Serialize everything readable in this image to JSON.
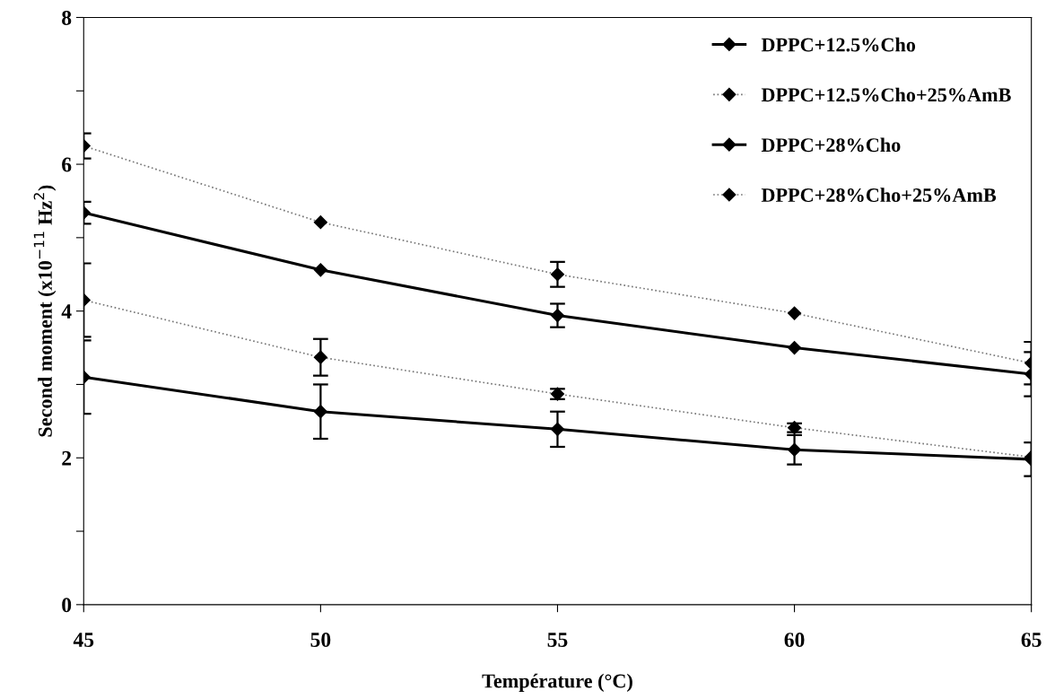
{
  "chart_data": {
    "type": "line",
    "xlabel": "Température (°C)",
    "ylabel": "Second moment (x10$^{−11}$ Hz$^{2}$)",
    "x": [
      45,
      50,
      55,
      60,
      65
    ],
    "series": [
      {
        "name": "DPPC+12.5%Cho",
        "color": "#000000",
        "line_style": "solid",
        "values": [
          3.1,
          2.63,
          2.39,
          2.11,
          1.98
        ],
        "errors": [
          0.5,
          0.37,
          0.24,
          0.2,
          0.23
        ]
      },
      {
        "name": "DPPC+12.5%Cho+25%AmB",
        "color": "#000000",
        "line_style": "dotted",
        "values": [
          4.15,
          3.37,
          2.87,
          2.41,
          2.01
        ],
        "errors": [
          0.5,
          0.25,
          0.07,
          0.06,
          null
        ]
      },
      {
        "name": "DPPC+28%Cho",
        "color": "#000000",
        "line_style": "solid",
        "values": [
          5.34,
          4.56,
          3.94,
          3.5,
          3.14
        ],
        "errors": [
          0.15,
          null,
          0.16,
          null,
          0.3
        ]
      },
      {
        "name": "DPPC+28%Cho+25%AmB",
        "color": "#000000",
        "line_style": "dotted",
        "values": [
          6.25,
          5.21,
          4.5,
          3.97,
          3.29
        ],
        "errors": [
          0.17,
          null,
          0.17,
          null,
          0.29
        ]
      }
    ],
    "xlim": [
      45,
      65
    ],
    "xticks": [
      45,
      50,
      55,
      60,
      65
    ],
    "ylim": [
      0,
      8
    ],
    "yticks": [
      0,
      {
        "value": 1,
        "label": null
      },
      2,
      {
        "value": 3,
        "label": null
      },
      4,
      {
        "value": 5,
        "label": null
      },
      6,
      {
        "value": 7,
        "label": null
      },
      8
    ],
    "marker": "diamond",
    "legend": "top right",
    "grid": false
  }
}
